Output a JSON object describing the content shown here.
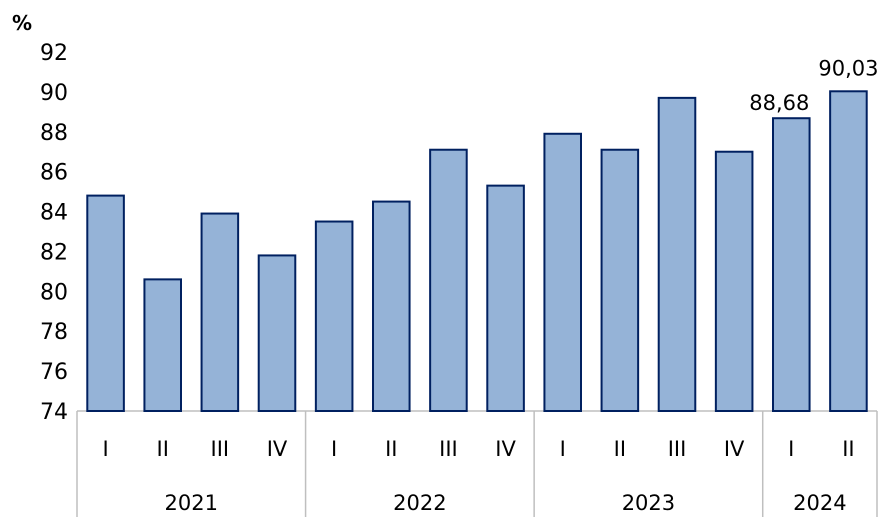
{
  "chart_data": {
    "type": "bar",
    "ylabel": "%",
    "ylim": [
      74,
      92
    ],
    "yticks": [
      "74",
      "76",
      "78",
      "80",
      "82",
      "84",
      "86",
      "88",
      "90",
      "92"
    ],
    "categories": [
      "I",
      "II",
      "III",
      "IV",
      "I",
      "II",
      "III",
      "IV",
      "I",
      "II",
      "III",
      "IV",
      "I",
      "II"
    ],
    "groups": [
      {
        "label": "2021",
        "count": 4
      },
      {
        "label": "2022",
        "count": 4
      },
      {
        "label": "2023",
        "count": 4
      },
      {
        "label": "2024",
        "count": 2
      }
    ],
    "values": [
      84.8,
      80.6,
      83.9,
      81.8,
      83.5,
      84.5,
      87.1,
      85.3,
      87.9,
      87.1,
      89.7,
      87.0,
      88.68,
      90.03
    ],
    "data_labels": [
      "",
      "",
      "",
      "",
      "",
      "",
      "",
      "",
      "",
      "",
      "",
      "",
      "88,68",
      "90,03"
    ],
    "grid": false,
    "legend": "none",
    "colors": {
      "bar_fill": "#95b3d7",
      "bar_stroke": "#002060",
      "axis": "#bfbfbf"
    }
  }
}
